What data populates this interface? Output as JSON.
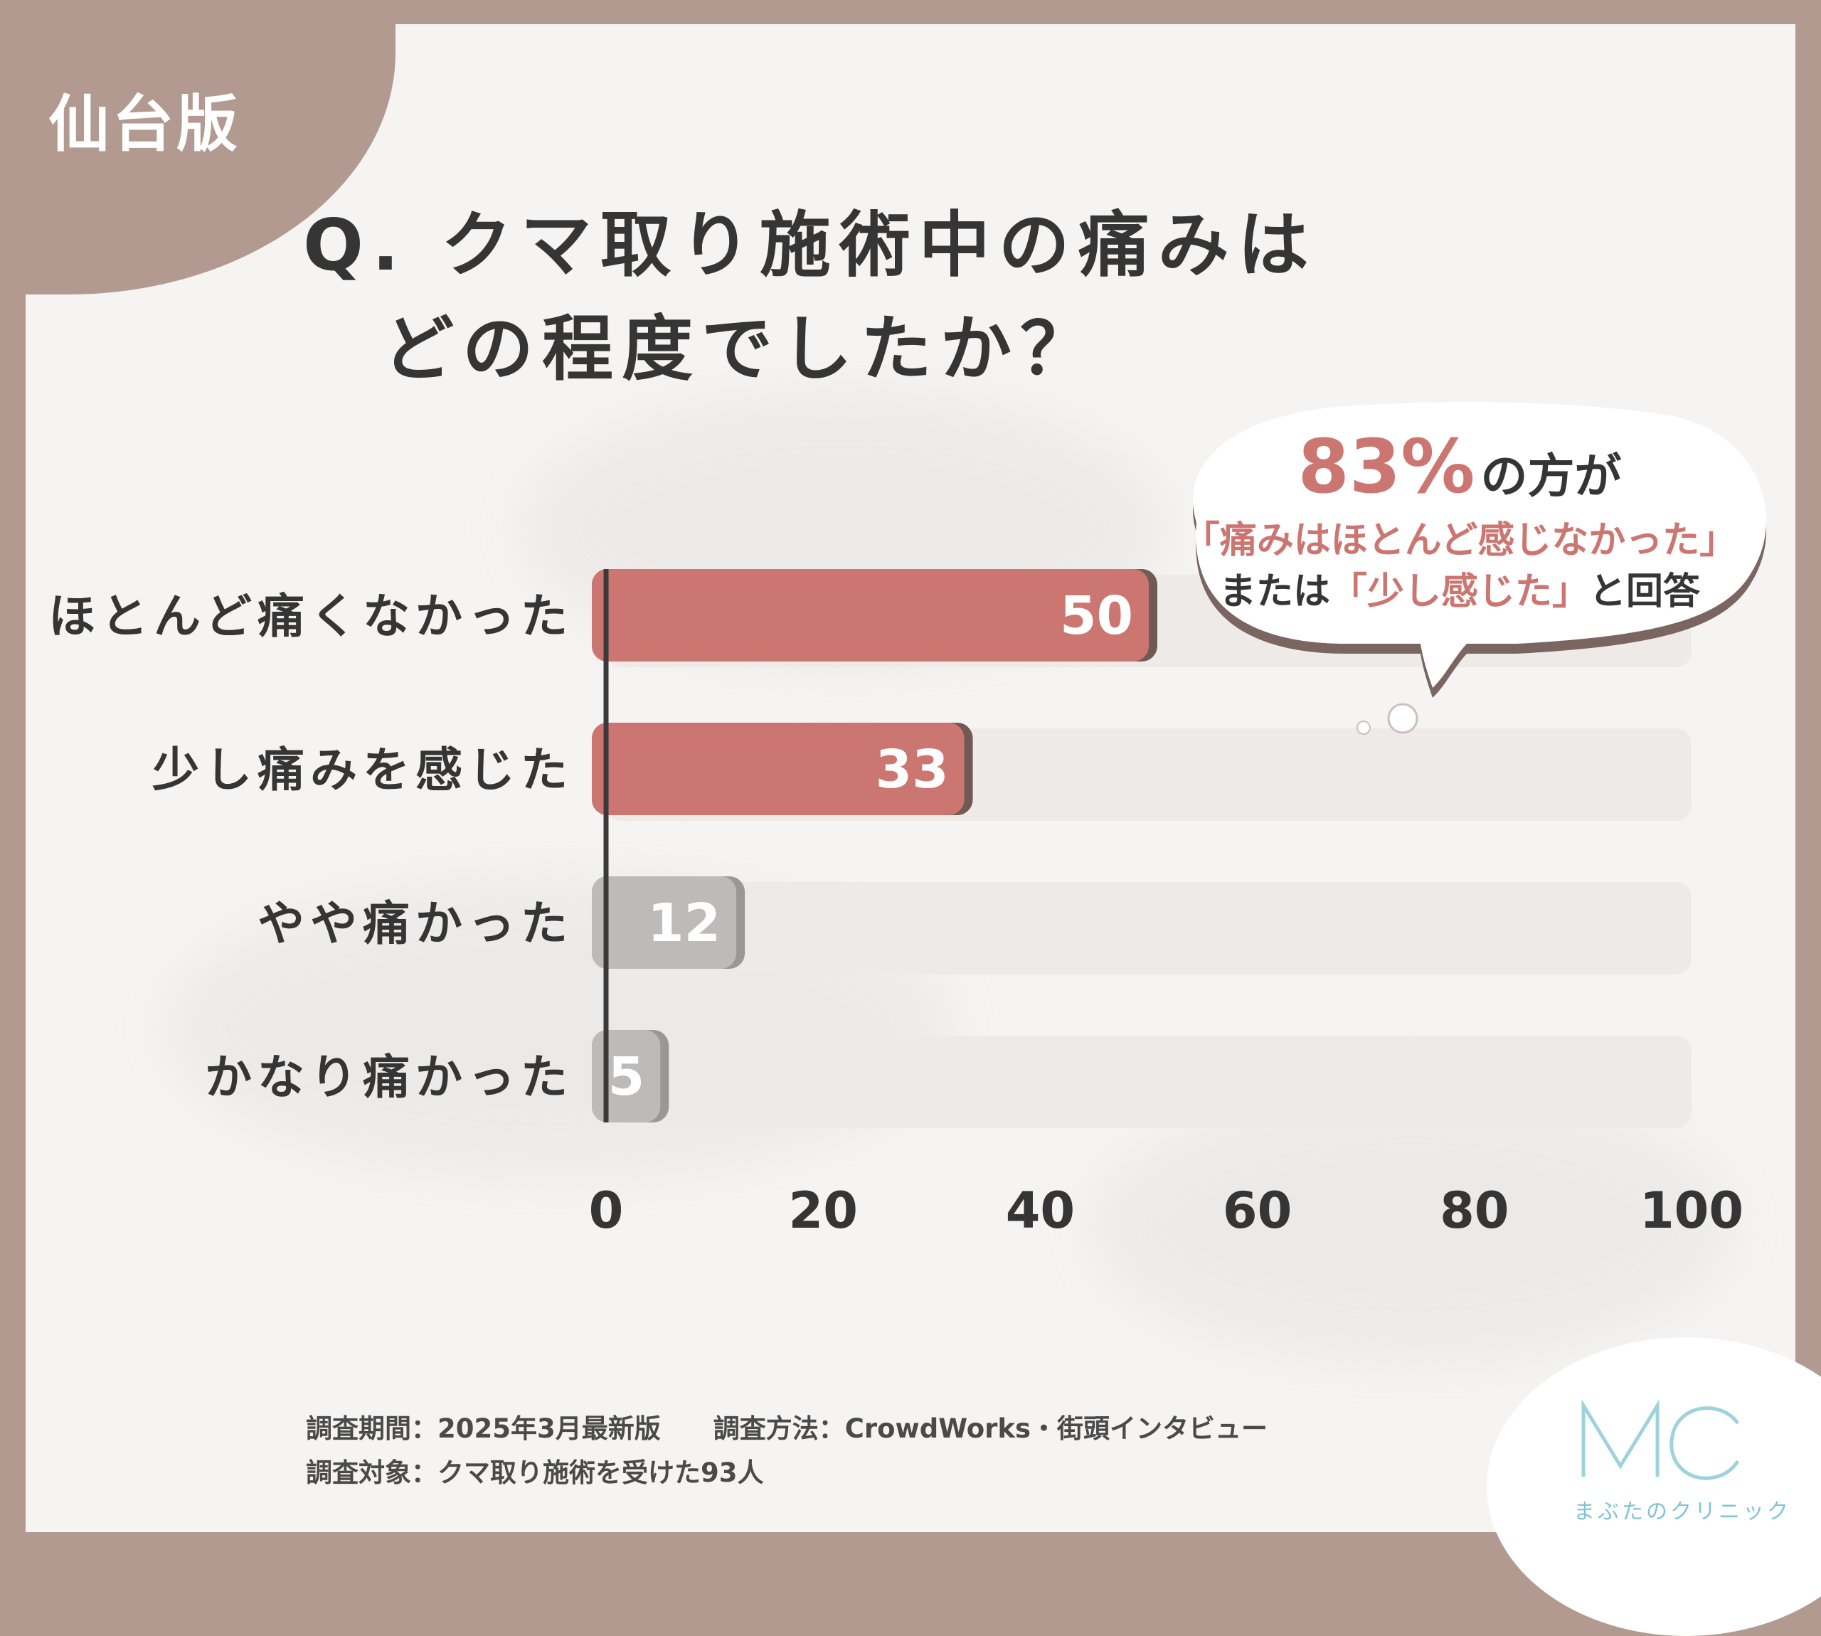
{
  "region_tag": "仙台版",
  "title": "Q. クマ取り施術中の痛みは\n　どの程度でしたか？",
  "callout": {
    "percent": "83%",
    "percent_suffix": "の方が",
    "line2": "「痛みはほとんど感じなかった」",
    "line3_prefix": "または",
    "line3_highlight": "「少し感じた」",
    "line3_suffix": "と回答"
  },
  "chart_data": {
    "type": "bar",
    "orientation": "horizontal",
    "categories": [
      "ほとんど痛くなかった",
      "少し痛みを感じた",
      "やや痛かった",
      "かなり痛かった"
    ],
    "values": [
      50,
      33,
      12,
      5
    ],
    "data_labels": [
      "50",
      "33",
      "12",
      "5"
    ],
    "xlim": [
      0,
      100
    ],
    "xticks": [
      0,
      20,
      40,
      60,
      80,
      100
    ],
    "grid": false,
    "legend": "none",
    "colors": {
      "highlight": "#cc7672",
      "highlight_shadow": "#6f5a55",
      "muted": "#bdbab8",
      "muted_shadow": "#9a9795",
      "track": "#edeae8",
      "axis": "#3a3a3a"
    },
    "bar_highlight": [
      true,
      true,
      false,
      false
    ]
  },
  "notes": {
    "line1": "調査期間：2025年3月最新版　　調査方法：CrowdWorks・街頭インタビュー",
    "line2": "調査対象：クマ取り施術を受けた93人"
  },
  "brand": {
    "logo_letters": "MC",
    "name": "まぶたのクリニック",
    "color": "#7fc4d6"
  }
}
